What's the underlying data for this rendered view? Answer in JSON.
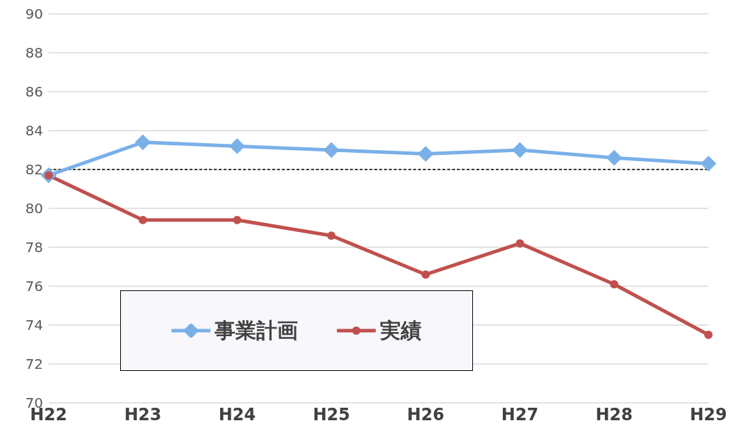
{
  "chart_data": {
    "type": "line",
    "categories": [
      "H22",
      "H23",
      "H24",
      "H25",
      "H26",
      "H27",
      "H28",
      "H29"
    ],
    "series": [
      {
        "name": "事業計画",
        "color": "#7ab0e8",
        "marker": "diamond",
        "values": [
          81.7,
          83.4,
          83.2,
          83.0,
          82.8,
          83.0,
          82.6,
          82.3
        ]
      },
      {
        "name": "実績",
        "color": "#c0504d",
        "marker": "circle",
        "values": [
          81.7,
          79.4,
          79.4,
          78.6,
          76.6,
          78.2,
          76.1,
          73.5
        ]
      }
    ],
    "ylim": [
      70,
      90
    ],
    "yticks": [
      70,
      72,
      74,
      76,
      78,
      80,
      82,
      84,
      86,
      88,
      90
    ],
    "grid": "y",
    "legend": "bottom left",
    "ref_lines": [
      {
        "axis": "y",
        "value": 82,
        "color": "#000000",
        "line_style": "dashed"
      }
    ]
  }
}
